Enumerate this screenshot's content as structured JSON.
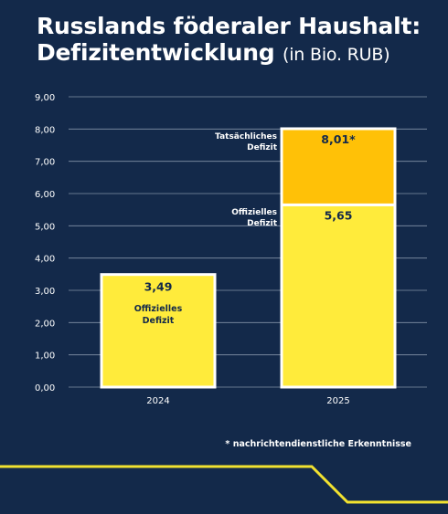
{
  "header": {
    "title_line1": "Russlands föderaler Haushalt:",
    "title_line2": "Defizitentwicklung",
    "title_note": "(in Bio. RUB)"
  },
  "footnote": "* nachrichtendienstliche Erkenntnisse",
  "colors": {
    "background": "#13294a",
    "official": "#ffeb3b",
    "actual_extra": "#ffc107",
    "grid": "#8393a7",
    "accent_line": "#f2e230"
  },
  "chart_data": {
    "type": "bar",
    "stacked": true,
    "categories": [
      "2024",
      "2025"
    ],
    "ylim": [
      0,
      9
    ],
    "yticks": [
      "0,00",
      "1,00",
      "2,00",
      "3,00",
      "4,00",
      "5,00",
      "6,00",
      "7,00",
      "8,00",
      "9,00"
    ],
    "series": [
      {
        "name": "Offizielles Defizit",
        "values": [
          3.49,
          5.65
        ]
      },
      {
        "name": "Tatsächliches Defizit",
        "values": [
          null,
          2.36
        ]
      }
    ],
    "value_labels": {
      "2024": "3,49",
      "2025_official": "5,65",
      "2025_total": "8,01*"
    },
    "bar_labels": {
      "official_2024": [
        "Offizielles",
        "Defizit"
      ],
      "official_2025": [
        "Offizielles",
        "Defizit"
      ],
      "actual_2025": [
        "Tatsächliches",
        "Defizit"
      ]
    },
    "grid": true
  }
}
